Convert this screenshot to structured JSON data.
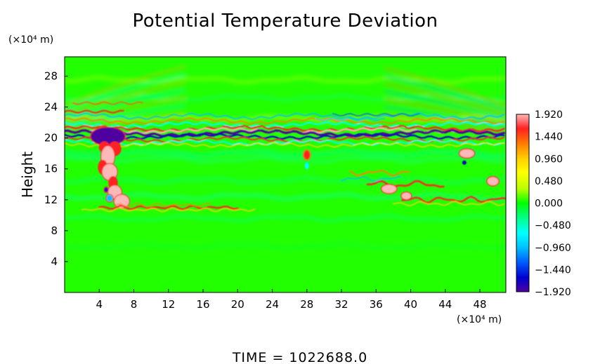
{
  "chart_data": {
    "type": "heatmap",
    "title": "Potential Temperature Deviation",
    "ylabel": "Height",
    "y_unit": "(×10⁴ m)",
    "x_unit": "(×10⁴ m)",
    "xlim": [
      0,
      51
    ],
    "ylim": [
      0,
      30.5
    ],
    "x_ticks": [
      "4",
      "8",
      "12",
      "16",
      "20",
      "24",
      "28",
      "32",
      "36",
      "40",
      "44",
      "48"
    ],
    "x_tick_values": [
      4,
      8,
      12,
      16,
      20,
      24,
      28,
      32,
      36,
      40,
      44,
      48
    ],
    "y_ticks": [
      "4",
      "8",
      "12",
      "16",
      "20",
      "24",
      "28"
    ],
    "y_tick_values": [
      4,
      8,
      12,
      16,
      20,
      24,
      28
    ],
    "colorbar": {
      "labels": [
        "1.920",
        "1.440",
        "0.960",
        "0.480",
        "0.000",
        "−0.480",
        "−0.960",
        "−1.440",
        "−1.920"
      ],
      "values": [
        1.92,
        1.44,
        0.96,
        0.48,
        0.0,
        -0.48,
        -0.96,
        -1.44,
        -1.92
      ],
      "range": [
        -1.92,
        1.92
      ],
      "colors_top_to_bottom": [
        "#ffb8b8",
        "#ff2020",
        "#ff8000",
        "#ffd000",
        "#ffff00",
        "#b8ff00",
        "#00ff00",
        "#00ff80",
        "#00ffff",
        "#00c0ff",
        "#0060ff",
        "#0000d0",
        "#5000a0"
      ]
    },
    "background_value": 0.0,
    "features": [
      {
        "name": "tropopause band",
        "y_range": [
          19.5,
          21.5
        ],
        "x_range": [
          0,
          51
        ],
        "values_range": [
          -1.92,
          1.92
        ]
      },
      {
        "name": "convective plume left",
        "x_range": [
          3.5,
          7
        ],
        "y_range": [
          11,
          20
        ],
        "values_range": [
          0.5,
          1.92
        ]
      },
      {
        "name": "convective band right",
        "x_range": [
          33,
          51
        ],
        "y_range": [
          11,
          16
        ],
        "values_range": [
          0.5,
          1.9
        ]
      }
    ]
  },
  "footer": {
    "time_label": "TIME  =  1022688.0"
  }
}
